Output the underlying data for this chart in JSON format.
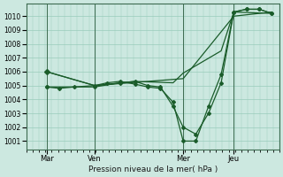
{
  "title": "Pression niveau de la mer( hPa )",
  "bg_color": "#cce8e0",
  "grid_color": "#99ccbb",
  "line_color": "#1a5c2a",
  "yticks": [
    1001,
    1002,
    1003,
    1004,
    1005,
    1006,
    1007,
    1008,
    1009,
    1010
  ],
  "ylim": [
    1000.4,
    1010.9
  ],
  "xtick_labels": [
    "Mar",
    "Ven",
    "Mer",
    "Jeu"
  ],
  "xtick_positions": [
    0.08,
    0.27,
    0.62,
    0.82
  ],
  "vline_positions": [
    0.08,
    0.27,
    0.62,
    0.82
  ],
  "xmin": 0.0,
  "xmax": 1.0,
  "line1_x": [
    0.08,
    0.13,
    0.19,
    0.27,
    0.32,
    0.37,
    0.43,
    0.48,
    0.53,
    0.58,
    0.62,
    0.67,
    0.72,
    0.77,
    0.82,
    0.87,
    0.92,
    0.97
  ],
  "line1_y": [
    1004.9,
    1004.8,
    1004.9,
    1005.0,
    1005.2,
    1005.3,
    1005.1,
    1004.9,
    1004.8,
    1003.8,
    1001.0,
    1001.0,
    1003.5,
    1005.8,
    1010.3,
    1010.5,
    1010.5,
    1010.2
  ],
  "line2_x": [
    0.08,
    0.27,
    0.37,
    0.43,
    0.48,
    0.53,
    0.58,
    0.62,
    0.67,
    0.72,
    0.77,
    0.82,
    0.87,
    0.92,
    0.97
  ],
  "line2_y": [
    1004.9,
    1004.9,
    1005.2,
    1005.3,
    1005.0,
    1004.9,
    1003.5,
    1002.0,
    1001.5,
    1003.0,
    1005.2,
    1010.3,
    1010.5,
    1010.5,
    1010.2
  ],
  "line3_x": [
    0.08,
    0.27,
    0.62,
    0.82,
    0.97
  ],
  "line3_y": [
    1006.0,
    1005.0,
    1005.5,
    1010.0,
    1010.3
  ],
  "line4_x": [
    0.08,
    0.27,
    0.43,
    0.58,
    0.62,
    0.77,
    0.82,
    0.97
  ],
  "line4_y": [
    1006.0,
    1005.0,
    1005.3,
    1005.2,
    1005.9,
    1007.5,
    1010.3,
    1010.2
  ]
}
